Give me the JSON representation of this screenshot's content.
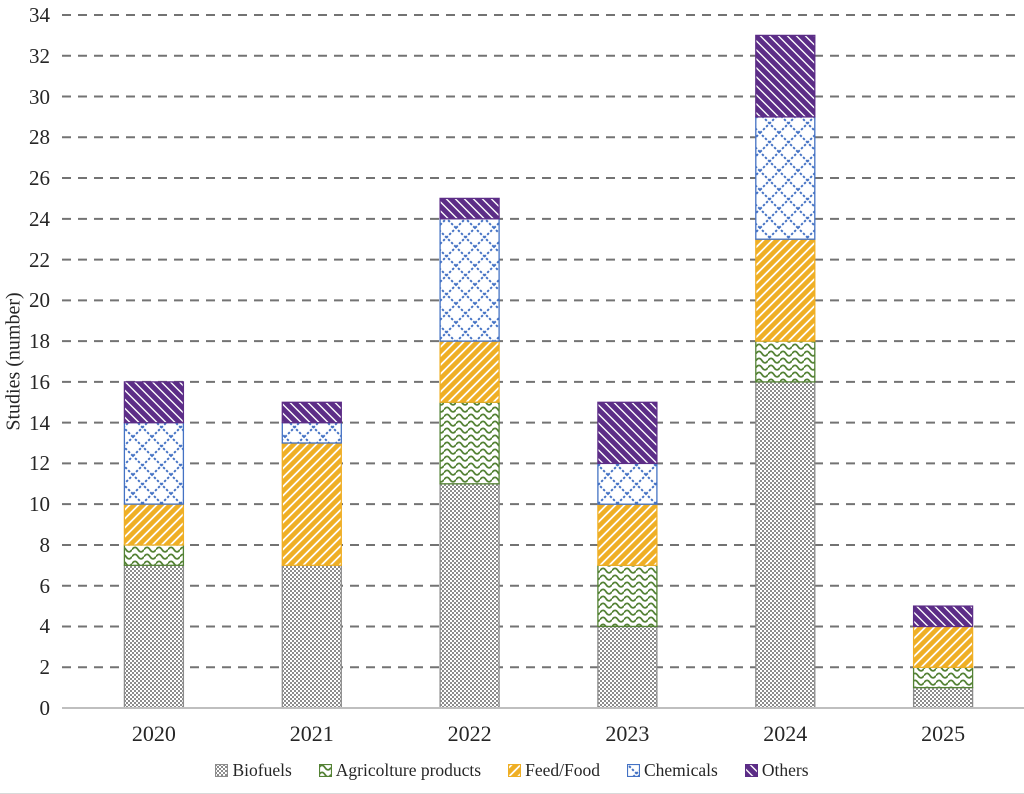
{
  "chart_data": {
    "type": "bar",
    "stacked": true,
    "title": "",
    "xlabel": "",
    "ylabel": "Studies (number)",
    "categories": [
      "2020",
      "2021",
      "2022",
      "2023",
      "2024",
      "2025"
    ],
    "series": [
      {
        "name": "Biofuels",
        "pattern": "checker",
        "color": "#8C8C8C",
        "values": [
          7,
          7,
          11,
          4,
          16,
          1
        ]
      },
      {
        "name": "Agricolture products",
        "pattern": "waves",
        "color": "#548235",
        "values": [
          1,
          0,
          4,
          3,
          2,
          1
        ]
      },
      {
        "name": "Feed/Food",
        "pattern": "diag-up",
        "color": "#EFAF25",
        "values": [
          2,
          6,
          3,
          3,
          5,
          2
        ]
      },
      {
        "name": "Chemicals",
        "pattern": "cross",
        "color": "#4472C4",
        "values": [
          4,
          1,
          6,
          2,
          6,
          0
        ]
      },
      {
        "name": "Others",
        "pattern": "diag-down",
        "color": "#5C2D87",
        "values": [
          2,
          1,
          1,
          3,
          4,
          1
        ]
      }
    ],
    "totals": [
      16,
      15,
      25,
      15,
      33,
      5
    ],
    "ylim": [
      0,
      34
    ],
    "ytick_step": 2,
    "y_ticks": [
      0,
      2,
      4,
      6,
      8,
      10,
      12,
      14,
      16,
      18,
      20,
      22,
      24,
      26,
      28,
      30,
      32,
      34
    ],
    "grid": "horizontal-dashed",
    "gridline_color": "#737373",
    "axis_line_color": "#BFBFBF",
    "legend_position": "bottom"
  }
}
